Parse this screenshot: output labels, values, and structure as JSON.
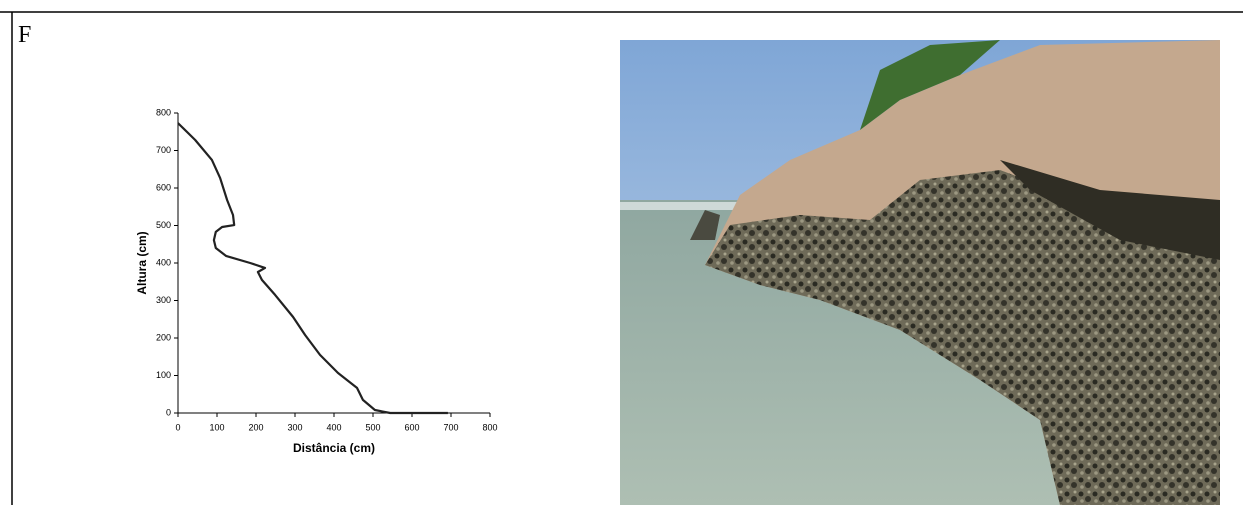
{
  "panel_label": "F",
  "chart_data": {
    "type": "line",
    "x_label": "Distância (cm)",
    "y_label": "Altura (cm)",
    "x": [
      0,
      44,
      87,
      108,
      126,
      141,
      144,
      113,
      97,
      92,
      97,
      123,
      185,
      223,
      205,
      215,
      249,
      295,
      326,
      364,
      410,
      459,
      474,
      505,
      544,
      692
    ],
    "values": [
      773,
      728,
      675,
      627,
      568,
      528,
      501,
      496,
      483,
      461,
      440,
      419,
      400,
      387,
      376,
      355,
      315,
      256,
      208,
      155,
      107,
      67,
      35,
      8,
      0,
      0
    ],
    "color": "#222222",
    "xlim": [
      0,
      800
    ],
    "xticks": [
      0,
      100,
      200,
      300,
      400,
      500,
      600,
      700,
      800
    ],
    "ylim": [
      0,
      800
    ],
    "yticks": [
      0,
      100,
      200,
      300,
      400,
      500,
      600,
      700,
      800
    ]
  }
}
